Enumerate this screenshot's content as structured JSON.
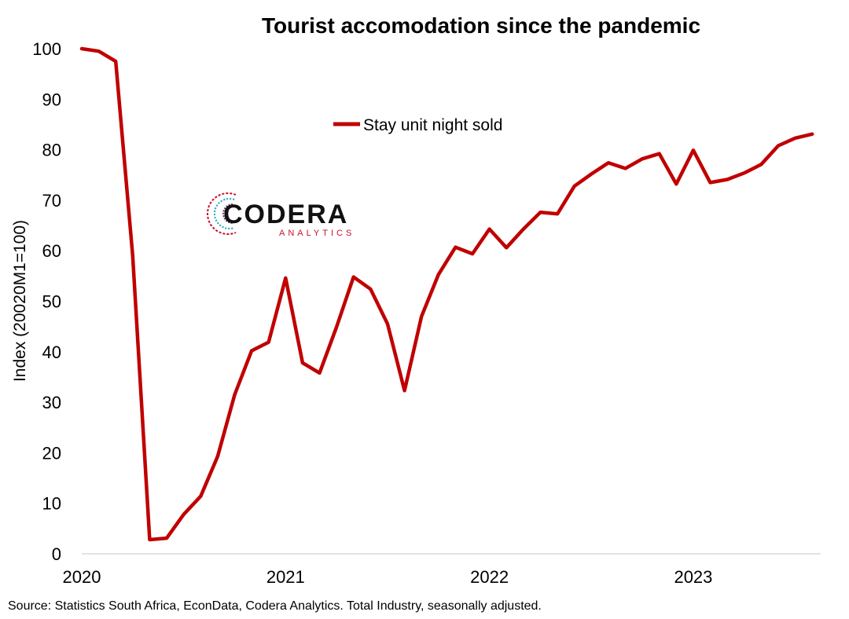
{
  "chart_data": {
    "type": "line",
    "title": "Tourist accomodation since the pandemic",
    "ylabel": "Index (20020M1=100)",
    "xlabel": "",
    "ylim": [
      0,
      100
    ],
    "yticks": [
      "0",
      "10",
      "20",
      "30",
      "40",
      "50",
      "60",
      "70",
      "80",
      "90",
      "100"
    ],
    "xticks": [
      {
        "label": "2020",
        "month_index": 0
      },
      {
        "label": "2021",
        "month_index": 12
      },
      {
        "label": "2022",
        "month_index": 24
      },
      {
        "label": "2023",
        "month_index": 36
      }
    ],
    "xlim_months": [
      0,
      43.5
    ],
    "legend_position": "top-center",
    "grid": false,
    "series": [
      {
        "name": "Stay unit night sold",
        "color": "#c00000",
        "x_start": "2020-01",
        "values": [
          100,
          99.5,
          97.5,
          59,
          2.8,
          3.1,
          7.8,
          11.4,
          19.3,
          31.5,
          40.2,
          41.9,
          54.6,
          37.8,
          35.8,
          44.9,
          54.8,
          52.4,
          45.5,
          32.3,
          47,
          55.3,
          60.7,
          59.4,
          64.3,
          60.6,
          64.3,
          67.6,
          67.3,
          72.8,
          75.2,
          77.4,
          76.3,
          78.2,
          79.2,
          73.2,
          79.9,
          73.5,
          74.1,
          75.4,
          77.1,
          80.8,
          82.3,
          83.1
        ]
      }
    ]
  },
  "logo": {
    "main": "CODERA",
    "sub": "ANALYTICS",
    "accent": "#c8102e",
    "accent2": "#1aa3c4"
  },
  "source": "Source: Statistics South Africa, EconData, Codera Analytics. Total Industry, seasonally adjusted."
}
